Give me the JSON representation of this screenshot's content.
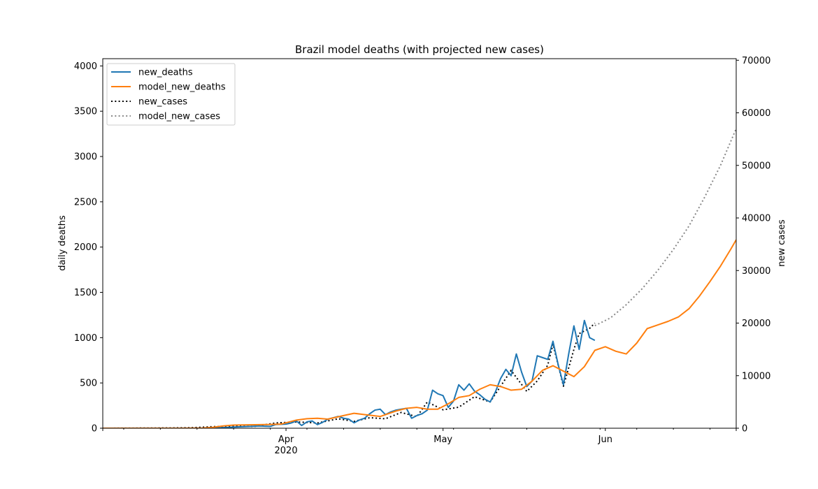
{
  "chart_data": {
    "type": "line",
    "title": "Brazil model deaths (with projected new cases)",
    "ylabel": "daily deaths",
    "y2label": "new cases",
    "xlim": [
      "2020-02-26",
      "2020-06-26"
    ],
    "ylim": [
      0,
      4080
    ],
    "y2lim": [
      0,
      70300
    ],
    "grid": false,
    "legend_position": "upper left",
    "x_major_ticks": [
      {
        "date": "2020-04-01",
        "label": "Apr",
        "sublabel": "2020"
      },
      {
        "date": "2020-05-01",
        "label": "May",
        "sublabel": ""
      },
      {
        "date": "2020-06-01",
        "label": "Jun",
        "sublabel": ""
      }
    ],
    "x_minor_ticks": [
      "2020-03-01",
      "2020-03-08",
      "2020-03-15",
      "2020-03-22",
      "2020-03-29",
      "2020-04-05",
      "2020-04-12",
      "2020-04-19",
      "2020-04-26",
      "2020-05-03",
      "2020-05-10",
      "2020-05-17",
      "2020-05-24",
      "2020-05-31",
      "2020-06-07",
      "2020-06-14",
      "2020-06-21"
    ],
    "y_ticks": [
      0,
      500,
      1000,
      1500,
      2000,
      2500,
      3000,
      3500,
      4000
    ],
    "y2_ticks": [
      0,
      10000,
      20000,
      30000,
      40000,
      50000,
      60000,
      70000
    ],
    "series": [
      {
        "name": "new_deaths",
        "axis": "left",
        "color": "#1f77b4",
        "style": "solid",
        "points": [
          [
            "2020-02-26",
            0
          ],
          [
            "2020-03-10",
            0
          ],
          [
            "2020-03-17",
            1
          ],
          [
            "2020-03-19",
            4
          ],
          [
            "2020-03-21",
            10
          ],
          [
            "2020-03-23",
            15
          ],
          [
            "2020-03-25",
            20
          ],
          [
            "2020-03-27",
            25
          ],
          [
            "2020-03-29",
            20
          ],
          [
            "2020-03-30",
            40
          ],
          [
            "2020-04-01",
            45
          ],
          [
            "2020-04-02",
            58
          ],
          [
            "2020-04-03",
            80
          ],
          [
            "2020-04-04",
            30
          ],
          [
            "2020-04-05",
            70
          ],
          [
            "2020-04-06",
            80
          ],
          [
            "2020-04-07",
            40
          ],
          [
            "2020-04-08",
            65
          ],
          [
            "2020-04-09",
            100
          ],
          [
            "2020-04-10",
            115
          ],
          [
            "2020-04-11",
            130
          ],
          [
            "2020-04-12",
            110
          ],
          [
            "2020-04-13",
            100
          ],
          [
            "2020-04-14",
            60
          ],
          [
            "2020-04-15",
            90
          ],
          [
            "2020-04-16",
            110
          ],
          [
            "2020-04-17",
            160
          ],
          [
            "2020-04-18",
            200
          ],
          [
            "2020-04-19",
            210
          ],
          [
            "2020-04-20",
            150
          ],
          [
            "2020-04-21",
            180
          ],
          [
            "2020-04-22",
            200
          ],
          [
            "2020-04-23",
            210
          ],
          [
            "2020-04-24",
            220
          ],
          [
            "2020-04-25",
            110
          ],
          [
            "2020-04-26",
            140
          ],
          [
            "2020-04-27",
            160
          ],
          [
            "2020-04-28",
            200
          ],
          [
            "2020-04-29",
            420
          ],
          [
            "2020-04-30",
            380
          ],
          [
            "2020-05-01",
            360
          ],
          [
            "2020-05-02",
            230
          ],
          [
            "2020-05-03",
            300
          ],
          [
            "2020-05-04",
            480
          ],
          [
            "2020-05-05",
            420
          ],
          [
            "2020-05-06",
            490
          ],
          [
            "2020-05-07",
            410
          ],
          [
            "2020-05-08",
            370
          ],
          [
            "2020-05-09",
            320
          ],
          [
            "2020-05-10",
            290
          ],
          [
            "2020-05-11",
            400
          ],
          [
            "2020-05-12",
            550
          ],
          [
            "2020-05-13",
            650
          ],
          [
            "2020-05-14",
            580
          ],
          [
            "2020-05-15",
            820
          ],
          [
            "2020-05-16",
            620
          ],
          [
            "2020-05-17",
            460
          ],
          [
            "2020-05-18",
            520
          ],
          [
            "2020-05-19",
            800
          ],
          [
            "2020-05-20",
            780
          ],
          [
            "2020-05-21",
            760
          ],
          [
            "2020-05-22",
            960
          ],
          [
            "2020-05-23",
            700
          ],
          [
            "2020-05-24",
            480
          ],
          [
            "2020-05-25",
            820
          ],
          [
            "2020-05-26",
            1130
          ],
          [
            "2020-05-27",
            870
          ],
          [
            "2020-05-28",
            1190
          ],
          [
            "2020-05-29",
            1000
          ],
          [
            "2020-05-30",
            970
          ]
        ]
      },
      {
        "name": "model_new_deaths",
        "axis": "left",
        "color": "#ff7f0e",
        "style": "solid",
        "points": [
          [
            "2020-02-26",
            0
          ],
          [
            "2020-03-05",
            0
          ],
          [
            "2020-03-12",
            0
          ],
          [
            "2020-03-16",
            2
          ],
          [
            "2020-03-18",
            10
          ],
          [
            "2020-03-20",
            25
          ],
          [
            "2020-03-22",
            35
          ],
          [
            "2020-03-25",
            38
          ],
          [
            "2020-03-28",
            40
          ],
          [
            "2020-03-31",
            45
          ],
          [
            "2020-04-03",
            90
          ],
          [
            "2020-04-05",
            105
          ],
          [
            "2020-04-07",
            110
          ],
          [
            "2020-04-09",
            100
          ],
          [
            "2020-04-12",
            140
          ],
          [
            "2020-04-14",
            165
          ],
          [
            "2020-04-16",
            150
          ],
          [
            "2020-04-19",
            130
          ],
          [
            "2020-04-22",
            190
          ],
          [
            "2020-04-24",
            220
          ],
          [
            "2020-04-26",
            230
          ],
          [
            "2020-04-28",
            210
          ],
          [
            "2020-04-30",
            210
          ],
          [
            "2020-05-02",
            270
          ],
          [
            "2020-05-04",
            340
          ],
          [
            "2020-05-06",
            360
          ],
          [
            "2020-05-08",
            430
          ],
          [
            "2020-05-10",
            480
          ],
          [
            "2020-05-12",
            460
          ],
          [
            "2020-05-14",
            420
          ],
          [
            "2020-05-16",
            430
          ],
          [
            "2020-05-18",
            520
          ],
          [
            "2020-05-20",
            640
          ],
          [
            "2020-05-22",
            690
          ],
          [
            "2020-05-24",
            630
          ],
          [
            "2020-05-26",
            570
          ],
          [
            "2020-05-28",
            680
          ],
          [
            "2020-05-30",
            860
          ],
          [
            "2020-06-01",
            900
          ],
          [
            "2020-06-03",
            850
          ],
          [
            "2020-06-05",
            820
          ],
          [
            "2020-06-07",
            940
          ],
          [
            "2020-06-09",
            1100
          ],
          [
            "2020-06-11",
            1140
          ],
          [
            "2020-06-13",
            1180
          ],
          [
            "2020-06-15",
            1230
          ],
          [
            "2020-06-17",
            1320
          ],
          [
            "2020-06-19",
            1460
          ],
          [
            "2020-06-21",
            1620
          ],
          [
            "2020-06-23",
            1790
          ],
          [
            "2020-06-25",
            1980
          ],
          [
            "2020-06-26",
            2080
          ]
        ]
      },
      {
        "name": "new_cases",
        "axis": "right",
        "color": "#000000",
        "style": "dotted",
        "points": [
          [
            "2020-02-26",
            0
          ],
          [
            "2020-03-10",
            50
          ],
          [
            "2020-03-14",
            100
          ],
          [
            "2020-03-18",
            300
          ],
          [
            "2020-03-22",
            400
          ],
          [
            "2020-03-26",
            350
          ],
          [
            "2020-03-30",
            1000
          ],
          [
            "2020-04-03",
            1200
          ],
          [
            "2020-04-07",
            1000
          ],
          [
            "2020-04-11",
            1800
          ],
          [
            "2020-04-14",
            1300
          ],
          [
            "2020-04-17",
            2000
          ],
          [
            "2020-04-20",
            1800
          ],
          [
            "2020-04-23",
            3000
          ],
          [
            "2020-04-26",
            2200
          ],
          [
            "2020-04-28",
            5000
          ],
          [
            "2020-05-01",
            3500
          ],
          [
            "2020-05-04",
            4000
          ],
          [
            "2020-05-07",
            6000
          ],
          [
            "2020-05-10",
            5000
          ],
          [
            "2020-05-12",
            8000
          ],
          [
            "2020-05-14",
            11000
          ],
          [
            "2020-05-17",
            7000
          ],
          [
            "2020-05-19",
            9000
          ],
          [
            "2020-05-21",
            12000
          ],
          [
            "2020-05-22",
            16000
          ],
          [
            "2020-05-24",
            8000
          ],
          [
            "2020-05-26",
            15000
          ],
          [
            "2020-05-27",
            18000
          ],
          [
            "2020-05-29",
            19000
          ],
          [
            "2020-05-30",
            20000
          ]
        ]
      },
      {
        "name": "model_new_cases",
        "axis": "right",
        "color": "#888888",
        "style": "dotted",
        "points": [
          [
            "2020-05-30",
            19500
          ],
          [
            "2020-06-02",
            21000
          ],
          [
            "2020-06-05",
            23500
          ],
          [
            "2020-06-08",
            26500
          ],
          [
            "2020-06-11",
            30000
          ],
          [
            "2020-06-14",
            34000
          ],
          [
            "2020-06-17",
            38500
          ],
          [
            "2020-06-20",
            44000
          ],
          [
            "2020-06-23",
            50000
          ],
          [
            "2020-06-26",
            57000
          ]
        ]
      }
    ]
  }
}
